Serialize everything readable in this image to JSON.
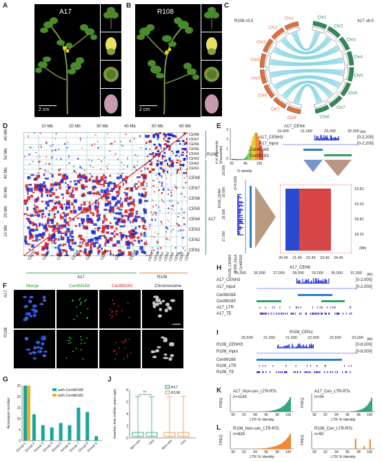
{
  "panels": {
    "A": {
      "letter": "A",
      "title": "A17",
      "scale": "2 cm"
    },
    "B": {
      "letter": "B",
      "title": "R108",
      "scale": "2 cm"
    },
    "C": {
      "letter": "C",
      "left_label": "R108 v3.0",
      "right_label": "A17 v6.0",
      "chr_labels": [
        "Chr1",
        "Chr2",
        "Chr3",
        "Chr4",
        "Chr5",
        "Chr6",
        "Chr7",
        "Chr8"
      ],
      "colors": {
        "a17": "#2e8b57",
        "r108": "#e0703a",
        "links": "#7fd3e0"
      }
    },
    "D": {
      "letter": "D",
      "top_ticks": [
        "10 Mb",
        "20 Mb",
        "30 Mb",
        "40 Mb",
        "50 Mb",
        "60 Mb"
      ],
      "left_ticks": [
        "60 Mb",
        "50 Mb",
        "40 Mb",
        "30 Mb",
        "20 Mb",
        "10 Mb"
      ],
      "right_cen": [
        "CEN8",
        "CEN7",
        "CEN6",
        "CEN5",
        "CEN4",
        "CEN3",
        "CEN2",
        "CEN1"
      ],
      "right_cen_r108": [
        "CEN8",
        "CEN7",
        "CEN6",
        "CEN5",
        "CEN4",
        "CEN3",
        "CEN2",
        "CEN1"
      ],
      "bottom_cen": [
        "CEN1",
        "CEN2",
        "CEN3",
        "CEN4",
        "CEN5",
        "CEN6",
        "CEN7",
        "CEN8"
      ],
      "group_a17": "A17",
      "group_r108": "R108",
      "side_a17": "A17",
      "side_r108": "R108"
    },
    "E": {
      "letter": "E",
      "title": "A17_CEN4",
      "top_ticks": [
        "19,000",
        "21,000",
        "23,000",
        "25,000"
      ],
      "top_unit": "(kb)",
      "hist_ylabel": "# of alignments (thousands)",
      "hist_yticks": [
        "3",
        "2",
        "1",
        "0"
      ],
      "hist_xticks": [
        "92",
        "96",
        "100"
      ],
      "hist_xlabel": "% identity",
      "tracks": [
        "A17_CENH3",
        "A17_Input",
        "CentM168",
        "CentM183"
      ],
      "ranges": [
        "[0-2,200]",
        "[0-2,200]"
      ],
      "left_title": "R108_CEN4",
      "left_ticks": [
        "20,500",
        "19,500",
        "18,500",
        "17,500"
      ],
      "left_range": "[0-8,000]",
      "left_tracks": [
        "R108_CENH3",
        "R108_Input",
        "CentM168"
      ],
      "right_ticks": [
        "19.81",
        "19.31",
        "18.81",
        "18.31"
      ],
      "right_unit": "(Mb)",
      "bottom_ticks": [
        "20.45",
        "21.45",
        "22.45",
        "23.45",
        "24.45"
      ]
    },
    "F": {
      "letter": "F",
      "cols": [
        "Merge",
        "CentM168",
        "CentM183",
        "Chromosome"
      ],
      "rows": [
        "A17",
        "R108"
      ],
      "col_colors": [
        "#2a9d2a",
        "#2a9d2a",
        "#d42020",
        "#222222"
      ]
    },
    "G": {
      "letter": "G",
      "legend": [
        "with CentM168",
        "with CentM183"
      ],
      "ylabel": "Accession number",
      "colors": [
        "#1aa59a",
        "#e6b030"
      ]
    },
    "H": {
      "letter": "H",
      "title": "A17_CEN6",
      "ticks": [
        "25,000",
        "26,000",
        "27,000",
        "28,000",
        "29,000",
        "30,000",
        "31,000"
      ],
      "unit": "(kb)",
      "tracks": [
        "A17_CENH3",
        "A17_Input",
        "CentM168",
        "CentM183",
        "A17_LTR",
        "A17_TE"
      ],
      "ranges": [
        "[0-2,000]",
        "[0-2,000]"
      ]
    },
    "I": {
      "letter": "I",
      "title": "R108_CEN1",
      "ticks": [
        "20,500",
        "21,000",
        "21,500",
        "22,000",
        "22,500",
        "23,000"
      ],
      "unit": "(kb)",
      "tracks": [
        "R108_CENH3",
        "R108_Input",
        "CentM168",
        "R108_LTR",
        "R108_TE"
      ],
      "ranges": [
        "[0-8,000]",
        "[0-8,000]"
      ]
    },
    "J": {
      "letter": "J",
      "legend": [
        "A17",
        "R108"
      ],
      "ylabel": "Insertion time (million years ago)",
      "yticks": [
        "8",
        "6",
        "4",
        "2",
        "0"
      ],
      "xticks": [
        "Non-cen",
        "Cen",
        "Non-cen",
        "Cen"
      ],
      "sig": "**",
      "colors": [
        "#1a9a72",
        "#e08a3a"
      ]
    },
    "K": {
      "letter": "K",
      "left_title": "A17_Non-cen_LTR-RTs",
      "left_n": "n=1143",
      "right_title": "A17_Cen_LTR-RTs",
      "right_n": "n=26",
      "ylabel": "FREQ",
      "xticks": [
        "90",
        "92",
        "94",
        "96",
        "98",
        "100"
      ],
      "xlabel": "LTR % Identity",
      "color": "#1a9a72"
    },
    "L": {
      "letter": "L",
      "left_title": "R108_Non-cen_LTR-RTs",
      "left_n": "n=828",
      "right_title": "R108_Cen_LTR-RTs",
      "right_n": "n=50",
      "ylabel": "FREQ",
      "xticks": [
        "90",
        "92",
        "94",
        "96",
        "98",
        "100"
      ],
      "xlabel": "LTR % Identity",
      "color": "#f07a1a"
    }
  },
  "chart_data": [
    {
      "type": "bar",
      "panel": "G",
      "categories": [
        "Group 1",
        "Group 2",
        "Group 3",
        "Group 4",
        "Group 5",
        "Group 6",
        "Group 7",
        "Group 8",
        "Group 9"
      ],
      "series": [
        {
          "name": "with CentM168",
          "values": [
            25,
            12,
            7,
            6,
            8,
            7,
            15,
            13,
            2
          ]
        },
        {
          "name": "with CentM183",
          "values": [
            25,
            0,
            0,
            0,
            0,
            0,
            0,
            0,
            0
          ]
        }
      ],
      "ylim": [
        0,
        25
      ],
      "yticks": [
        "25",
        "20",
        "15",
        "10",
        "5",
        "0"
      ]
    }
  ]
}
